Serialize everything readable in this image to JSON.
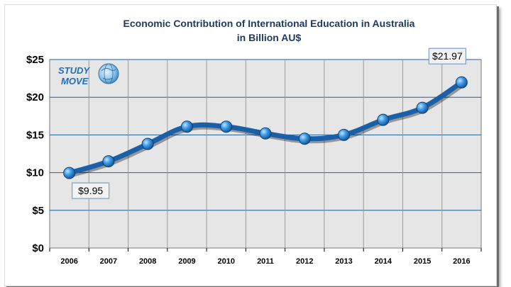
{
  "chart_data": {
    "type": "line",
    "title_line1": "Economic Contribution of International Education in Australia",
    "title_line2": "in Billion AU$",
    "x": [
      "2006",
      "2007",
      "2008",
      "2009",
      "2010",
      "2011",
      "2012",
      "2013",
      "2014",
      "2015",
      "2016"
    ],
    "series": [
      {
        "values": [
          9.95,
          11.5,
          13.8,
          16.1,
          16.1,
          15.2,
          14.5,
          15.0,
          17.0,
          18.6,
          21.97
        ]
      }
    ],
    "ylim": [
      0,
      25
    ],
    "yticks": [
      0,
      5,
      10,
      15,
      20,
      25
    ],
    "ytick_labels": [
      "$0",
      "$5",
      "$10",
      "$15",
      "$20",
      "$25"
    ],
    "grid": true,
    "annotations": [
      {
        "category": "2006",
        "text": "$9.95"
      },
      {
        "category": "2016",
        "text": "$21.97"
      }
    ],
    "colors": {
      "line": "#1a5fa8",
      "marker": "#2b8ee0",
      "plot_bg": "#e6e6e6",
      "grid": "#1f5f9f"
    }
  },
  "logo": {
    "line1": "STUDY",
    "line2": "MOVE",
    "globe_icon": "globe-icon"
  }
}
